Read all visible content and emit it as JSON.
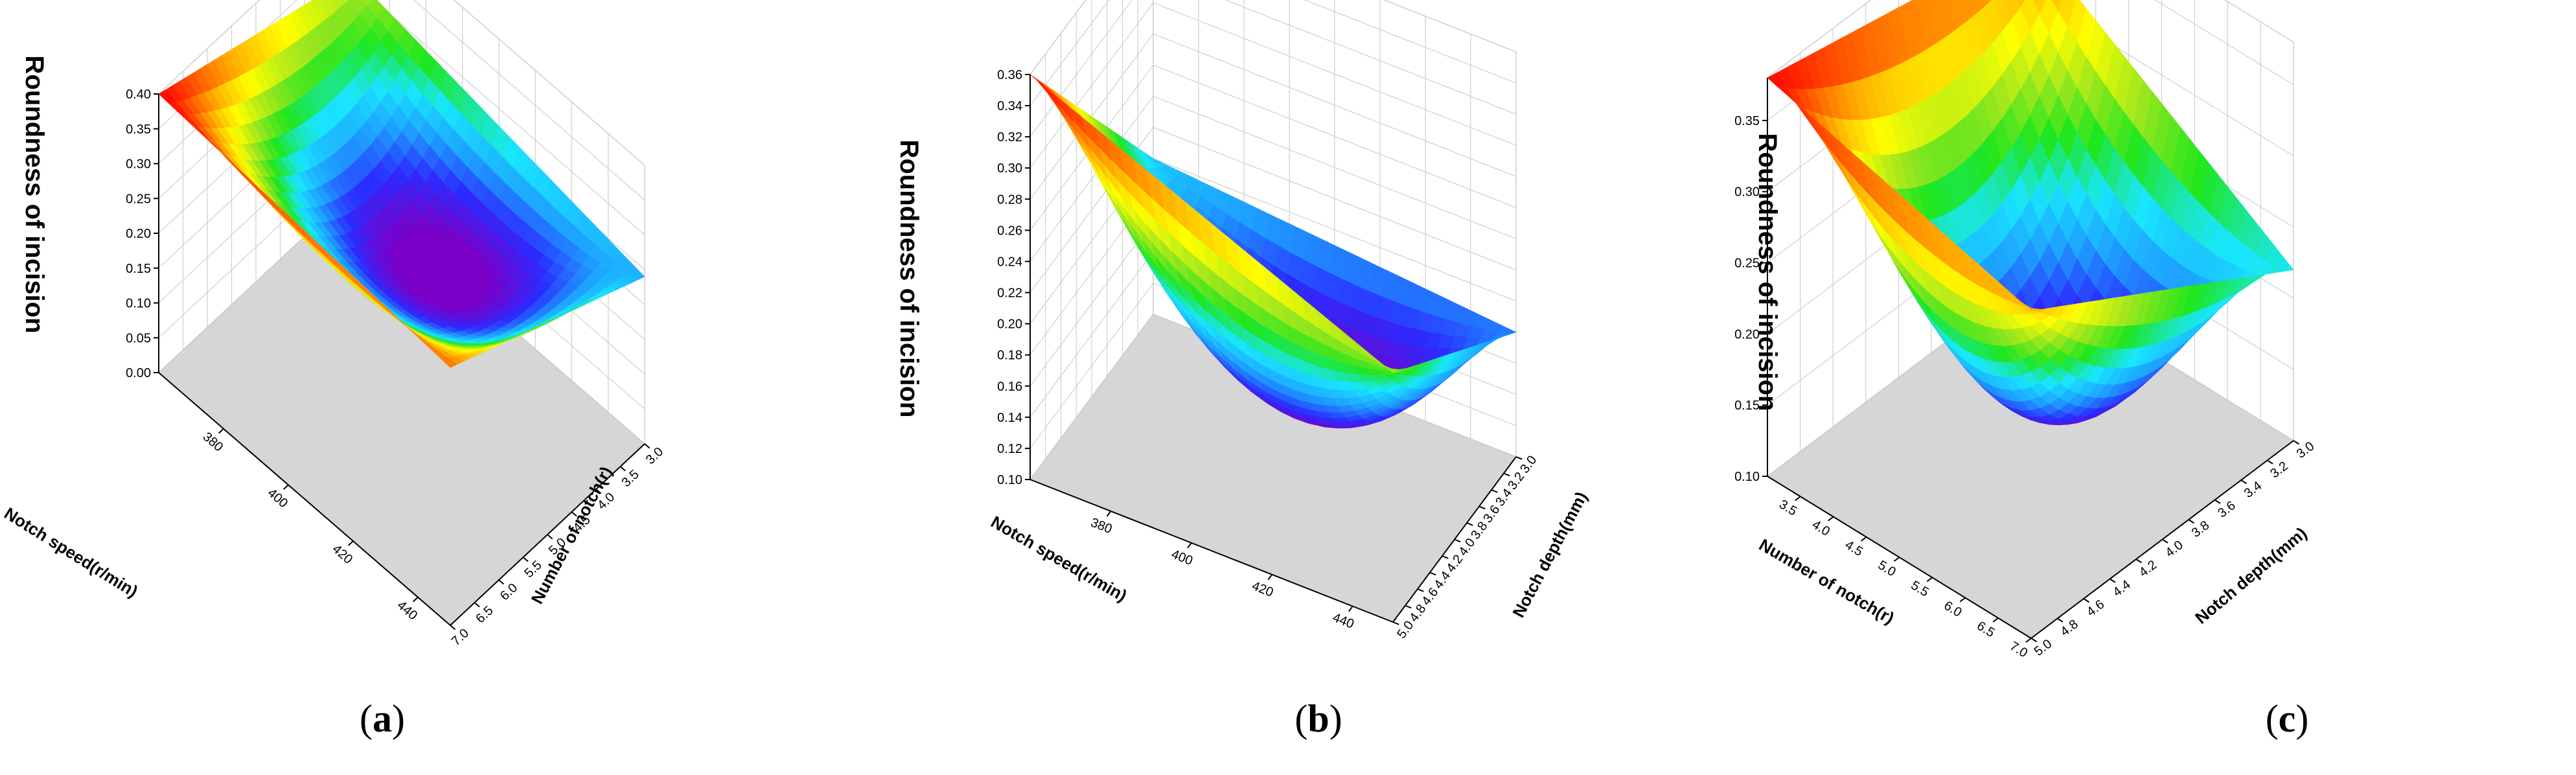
{
  "colors": {
    "floor": "#d6d6d6",
    "grid": "#cfcfcf",
    "axis": "#000000",
    "ramp": [
      "#7a00c8",
      "#2b2bff",
      "#1ea0ff",
      "#19e6ff",
      "#1ee61e",
      "#a0e61e",
      "#ffff00",
      "#ffb400",
      "#ff5a00",
      "#ff0000"
    ]
  },
  "chart_data": [
    {
      "type": "surface",
      "caption": "a",
      "zlabel": "Roundness of incision",
      "xlabel": "Notch speed(r/min)",
      "ylabel": "Number of notch(r)",
      "xticks": [
        "380",
        "400",
        "420",
        "440"
      ],
      "yticks": [
        "3.0",
        "3.5",
        "4.0",
        "4.5",
        "5.0",
        "5.5",
        "6.0",
        "6.5",
        "7.0"
      ],
      "zticks": [
        "0.00",
        "0.05",
        "0.10",
        "0.15",
        "0.20",
        "0.25",
        "0.30",
        "0.35",
        "0.40"
      ],
      "xlim": [
        360,
        450
      ],
      "ylim": [
        3.0,
        7.0
      ],
      "zlim": [
        0.0,
        0.4
      ],
      "z_corners": {
        "xmin_ymin": 0.4,
        "xmax_ymin": 0.37,
        "xmin_ymax": 0.31,
        "xmax_ymax": 0.24
      },
      "z_min": 0.19
    },
    {
      "type": "surface",
      "caption": "b",
      "zlabel": "Roundness of incision",
      "xlabel": "Notch speed(r/min)",
      "ylabel": "Notch depth(mm)",
      "xticks": [
        "380",
        "400",
        "420",
        "440"
      ],
      "yticks": [
        "3.0",
        "3.2",
        "3.4",
        "3.6",
        "3.8",
        "4.0",
        "4.2",
        "4.4",
        "4.6",
        "4.8",
        "5.0"
      ],
      "zticks": [
        "0.10",
        "0.12",
        "0.14",
        "0.16",
        "0.18",
        "0.20",
        "0.22",
        "0.24",
        "0.26",
        "0.28",
        "0.30",
        "0.32",
        "0.34",
        "0.36"
      ],
      "xlim": [
        360,
        450
      ],
      "ylim": [
        3.0,
        5.0
      ],
      "zlim": [
        0.1,
        0.36
      ],
      "z_corners": {
        "xmin_ymin": 0.36,
        "xmax_ymin": 0.26,
        "xmin_ymax": 0.2,
        "xmax_ymax": 0.18
      },
      "z_min": 0.14
    },
    {
      "type": "surface",
      "caption": "c",
      "zlabel": "Roundness of incision",
      "xlabel": "Number of notch(r)",
      "ylabel": "Notch depth(mm)",
      "xticks": [
        "3.5",
        "4.0",
        "4.5",
        "5.0",
        "5.5",
        "6.0",
        "6.5",
        "7.0"
      ],
      "yticks": [
        "3.0",
        "3.2",
        "3.4",
        "3.6",
        "3.8",
        "4.0",
        "4.2",
        "4.4",
        "4.6",
        "4.8",
        "5.0"
      ],
      "zticks": [
        "0.10",
        "0.15",
        "0.20",
        "0.25",
        "0.30",
        "0.35"
      ],
      "xlim": [
        3.0,
        7.0
      ],
      "ylim": [
        3.0,
        5.0
      ],
      "zlim": [
        0.1,
        0.38
      ],
      "z_corners": {
        "xmin_ymin": 0.38,
        "xmax_ymin": 0.33,
        "xmin_ymax": 0.34,
        "xmax_ymax": 0.22
      },
      "z_min": 0.14
    }
  ]
}
